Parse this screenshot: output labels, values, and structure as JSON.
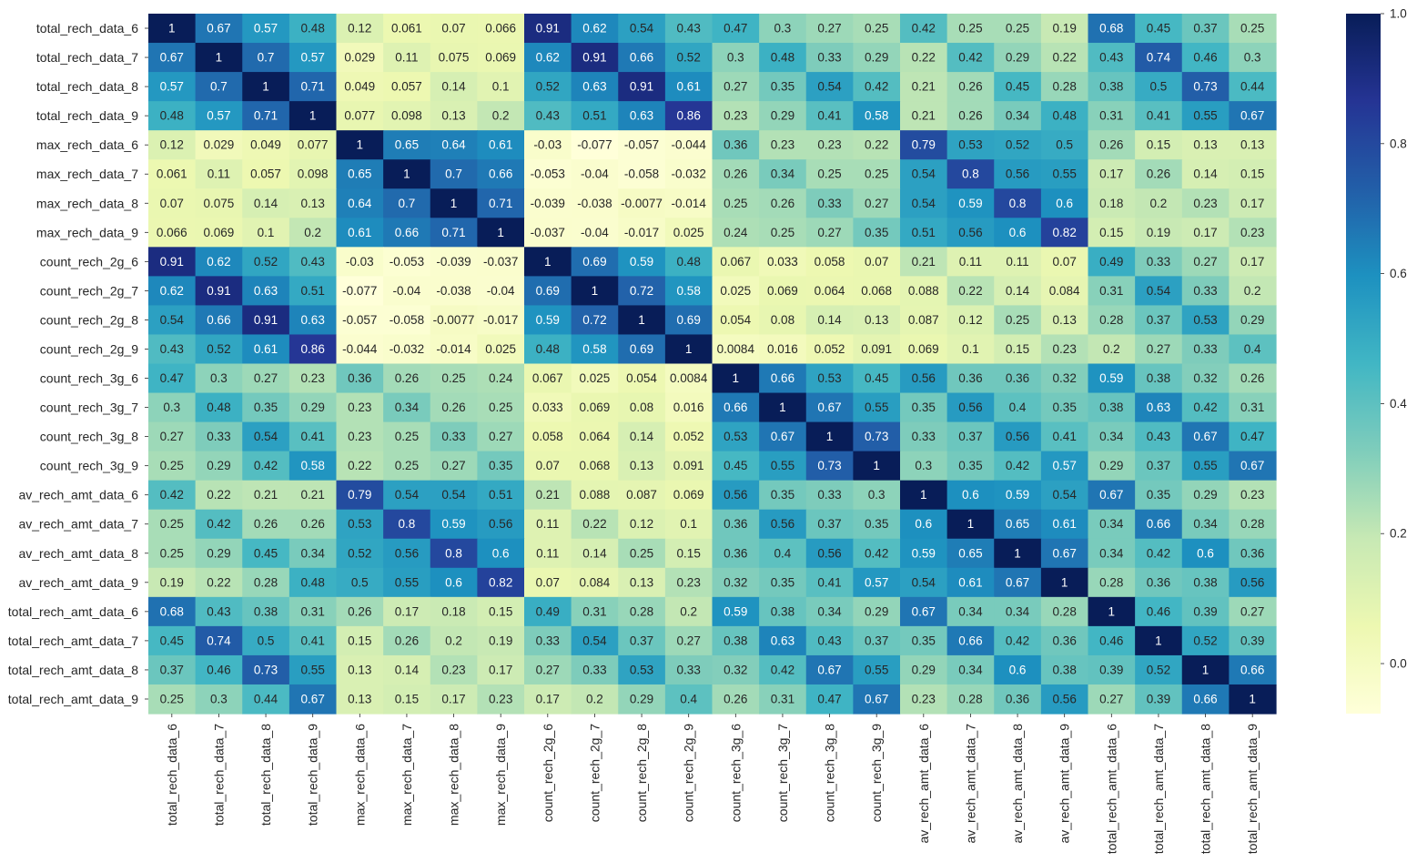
{
  "chart_data": {
    "type": "heatmap",
    "title": "",
    "xlabel": "",
    "ylabel": "",
    "colormap": "YlGnBu",
    "vmin": -0.077,
    "vmax": 1.0,
    "labels": [
      "total_rech_data_6",
      "total_rech_data_7",
      "total_rech_data_8",
      "total_rech_data_9",
      "max_rech_data_6",
      "max_rech_data_7",
      "max_rech_data_8",
      "max_rech_data_9",
      "count_rech_2g_6",
      "count_rech_2g_7",
      "count_rech_2g_8",
      "count_rech_2g_9",
      "count_rech_3g_6",
      "count_rech_3g_7",
      "count_rech_3g_8",
      "count_rech_3g_9",
      "av_rech_amt_data_6",
      "av_rech_amt_data_7",
      "av_rech_amt_data_8",
      "av_rech_amt_data_9",
      "total_rech_amt_data_6",
      "total_rech_amt_data_7",
      "total_rech_amt_data_8",
      "total_rech_amt_data_9"
    ],
    "values": [
      [
        "1",
        "0.67",
        "0.57",
        "0.48",
        "0.12",
        "0.061",
        "0.07",
        "0.066",
        "0.91",
        "0.62",
        "0.54",
        "0.43",
        "0.47",
        "0.3",
        "0.27",
        "0.25",
        "0.42",
        "0.25",
        "0.25",
        "0.19",
        "0.68",
        "0.45",
        "0.37",
        "0.25"
      ],
      [
        "0.67",
        "1",
        "0.7",
        "0.57",
        "0.029",
        "0.11",
        "0.075",
        "0.069",
        "0.62",
        "0.91",
        "0.66",
        "0.52",
        "0.3",
        "0.48",
        "0.33",
        "0.29",
        "0.22",
        "0.42",
        "0.29",
        "0.22",
        "0.43",
        "0.74",
        "0.46",
        "0.3"
      ],
      [
        "0.57",
        "0.7",
        "1",
        "0.71",
        "0.049",
        "0.057",
        "0.14",
        "0.1",
        "0.52",
        "0.63",
        "0.91",
        "0.61",
        "0.27",
        "0.35",
        "0.54",
        "0.42",
        "0.21",
        "0.26",
        "0.45",
        "0.28",
        "0.38",
        "0.5",
        "0.73",
        "0.44"
      ],
      [
        "0.48",
        "0.57",
        "0.71",
        "1",
        "0.077",
        "0.098",
        "0.13",
        "0.2",
        "0.43",
        "0.51",
        "0.63",
        "0.86",
        "0.23",
        "0.29",
        "0.41",
        "0.58",
        "0.21",
        "0.26",
        "0.34",
        "0.48",
        "0.31",
        "0.41",
        "0.55",
        "0.67"
      ],
      [
        "0.12",
        "0.029",
        "0.049",
        "0.077",
        "1",
        "0.65",
        "0.64",
        "0.61",
        "-0.03",
        "-0.077",
        "-0.057",
        "-0.044",
        "0.36",
        "0.23",
        "0.23",
        "0.22",
        "0.79",
        "0.53",
        "0.52",
        "0.5",
        "0.26",
        "0.15",
        "0.13",
        "0.13"
      ],
      [
        "0.061",
        "0.11",
        "0.057",
        "0.098",
        "0.65",
        "1",
        "0.7",
        "0.66",
        "-0.053",
        "-0.04",
        "-0.058",
        "-0.032",
        "0.26",
        "0.34",
        "0.25",
        "0.25",
        "0.54",
        "0.8",
        "0.56",
        "0.55",
        "0.17",
        "0.26",
        "0.14",
        "0.15"
      ],
      [
        "0.07",
        "0.075",
        "0.14",
        "0.13",
        "0.64",
        "0.7",
        "1",
        "0.71",
        "-0.039",
        "-0.038",
        "-0.0077",
        "-0.014",
        "0.25",
        "0.26",
        "0.33",
        "0.27",
        "0.54",
        "0.59",
        "0.8",
        "0.6",
        "0.18",
        "0.2",
        "0.23",
        "0.17"
      ],
      [
        "0.066",
        "0.069",
        "0.1",
        "0.2",
        "0.61",
        "0.66",
        "0.71",
        "1",
        "-0.037",
        "-0.04",
        "-0.017",
        "0.025",
        "0.24",
        "0.25",
        "0.27",
        "0.35",
        "0.51",
        "0.56",
        "0.6",
        "0.82",
        "0.15",
        "0.19",
        "0.17",
        "0.23"
      ],
      [
        "0.91",
        "0.62",
        "0.52",
        "0.43",
        "-0.03",
        "-0.053",
        "-0.039",
        "-0.037",
        "1",
        "0.69",
        "0.59",
        "0.48",
        "0.067",
        "0.033",
        "0.058",
        "0.07",
        "0.21",
        "0.11",
        "0.11",
        "0.07",
        "0.49",
        "0.33",
        "0.27",
        "0.17"
      ],
      [
        "0.62",
        "0.91",
        "0.63",
        "0.51",
        "-0.077",
        "-0.04",
        "-0.038",
        "-0.04",
        "0.69",
        "1",
        "0.72",
        "0.58",
        "0.025",
        "0.069",
        "0.064",
        "0.068",
        "0.088",
        "0.22",
        "0.14",
        "0.084",
        "0.31",
        "0.54",
        "0.33",
        "0.2"
      ],
      [
        "0.54",
        "0.66",
        "0.91",
        "0.63",
        "-0.057",
        "-0.058",
        "-0.0077",
        "-0.017",
        "0.59",
        "0.72",
        "1",
        "0.69",
        "0.054",
        "0.08",
        "0.14",
        "0.13",
        "0.087",
        "0.12",
        "0.25",
        "0.13",
        "0.28",
        "0.37",
        "0.53",
        "0.29"
      ],
      [
        "0.43",
        "0.52",
        "0.61",
        "0.86",
        "-0.044",
        "-0.032",
        "-0.014",
        "0.025",
        "0.48",
        "0.58",
        "0.69",
        "1",
        "0.0084",
        "0.016",
        "0.052",
        "0.091",
        "0.069",
        "0.1",
        "0.15",
        "0.23",
        "0.2",
        "0.27",
        "0.33",
        "0.4"
      ],
      [
        "0.47",
        "0.3",
        "0.27",
        "0.23",
        "0.36",
        "0.26",
        "0.25",
        "0.24",
        "0.067",
        "0.025",
        "0.054",
        "0.0084",
        "1",
        "0.66",
        "0.53",
        "0.45",
        "0.56",
        "0.36",
        "0.36",
        "0.32",
        "0.59",
        "0.38",
        "0.32",
        "0.26"
      ],
      [
        "0.3",
        "0.48",
        "0.35",
        "0.29",
        "0.23",
        "0.34",
        "0.26",
        "0.25",
        "0.033",
        "0.069",
        "0.08",
        "0.016",
        "0.66",
        "1",
        "0.67",
        "0.55",
        "0.35",
        "0.56",
        "0.4",
        "0.35",
        "0.38",
        "0.63",
        "0.42",
        "0.31"
      ],
      [
        "0.27",
        "0.33",
        "0.54",
        "0.41",
        "0.23",
        "0.25",
        "0.33",
        "0.27",
        "0.058",
        "0.064",
        "0.14",
        "0.052",
        "0.53",
        "0.67",
        "1",
        "0.73",
        "0.33",
        "0.37",
        "0.56",
        "0.41",
        "0.34",
        "0.43",
        "0.67",
        "0.47"
      ],
      [
        "0.25",
        "0.29",
        "0.42",
        "0.58",
        "0.22",
        "0.25",
        "0.27",
        "0.35",
        "0.07",
        "0.068",
        "0.13",
        "0.091",
        "0.45",
        "0.55",
        "0.73",
        "1",
        "0.3",
        "0.35",
        "0.42",
        "0.57",
        "0.29",
        "0.37",
        "0.55",
        "0.67"
      ],
      [
        "0.42",
        "0.22",
        "0.21",
        "0.21",
        "0.79",
        "0.54",
        "0.54",
        "0.51",
        "0.21",
        "0.088",
        "0.087",
        "0.069",
        "0.56",
        "0.35",
        "0.33",
        "0.3",
        "1",
        "0.6",
        "0.59",
        "0.54",
        "0.67",
        "0.35",
        "0.29",
        "0.23"
      ],
      [
        "0.25",
        "0.42",
        "0.26",
        "0.26",
        "0.53",
        "0.8",
        "0.59",
        "0.56",
        "0.11",
        "0.22",
        "0.12",
        "0.1",
        "0.36",
        "0.56",
        "0.37",
        "0.35",
        "0.6",
        "1",
        "0.65",
        "0.61",
        "0.34",
        "0.66",
        "0.34",
        "0.28"
      ],
      [
        "0.25",
        "0.29",
        "0.45",
        "0.34",
        "0.52",
        "0.56",
        "0.8",
        "0.6",
        "0.11",
        "0.14",
        "0.25",
        "0.15",
        "0.36",
        "0.4",
        "0.56",
        "0.42",
        "0.59",
        "0.65",
        "1",
        "0.67",
        "0.34",
        "0.42",
        "0.6",
        "0.36"
      ],
      [
        "0.19",
        "0.22",
        "0.28",
        "0.48",
        "0.5",
        "0.55",
        "0.6",
        "0.82",
        "0.07",
        "0.084",
        "0.13",
        "0.23",
        "0.32",
        "0.35",
        "0.41",
        "0.57",
        "0.54",
        "0.61",
        "0.67",
        "1",
        "0.28",
        "0.36",
        "0.38",
        "0.56"
      ],
      [
        "0.68",
        "0.43",
        "0.38",
        "0.31",
        "0.26",
        "0.17",
        "0.18",
        "0.15",
        "0.49",
        "0.31",
        "0.28",
        "0.2",
        "0.59",
        "0.38",
        "0.34",
        "0.29",
        "0.67",
        "0.34",
        "0.34",
        "0.28",
        "1",
        "0.46",
        "0.39",
        "0.27"
      ],
      [
        "0.45",
        "0.74",
        "0.5",
        "0.41",
        "0.15",
        "0.26",
        "0.2",
        "0.19",
        "0.33",
        "0.54",
        "0.37",
        "0.27",
        "0.38",
        "0.63",
        "0.43",
        "0.37",
        "0.35",
        "0.66",
        "0.42",
        "0.36",
        "0.46",
        "1",
        "0.52",
        "0.39"
      ],
      [
        "0.37",
        "0.46",
        "0.73",
        "0.55",
        "0.13",
        "0.14",
        "0.23",
        "0.17",
        "0.27",
        "0.33",
        "0.53",
        "0.33",
        "0.32",
        "0.42",
        "0.67",
        "0.55",
        "0.29",
        "0.34",
        "0.6",
        "0.38",
        "0.39",
        "0.52",
        "1",
        "0.66"
      ],
      [
        "0.25",
        "0.3",
        "0.44",
        "0.67",
        "0.13",
        "0.15",
        "0.17",
        "0.23",
        "0.17",
        "0.2",
        "0.29",
        "0.4",
        "0.26",
        "0.31",
        "0.47",
        "0.67",
        "0.23",
        "0.28",
        "0.36",
        "0.56",
        "0.27",
        "0.39",
        "0.66",
        "1"
      ]
    ],
    "colorbar": {
      "ticks": [
        0.0,
        0.2,
        0.4,
        0.6,
        0.8,
        1.0
      ],
      "tick_labels": [
        "0.0",
        "0.2",
        "0.4",
        "0.6",
        "0.8",
        "1.0"
      ]
    }
  }
}
